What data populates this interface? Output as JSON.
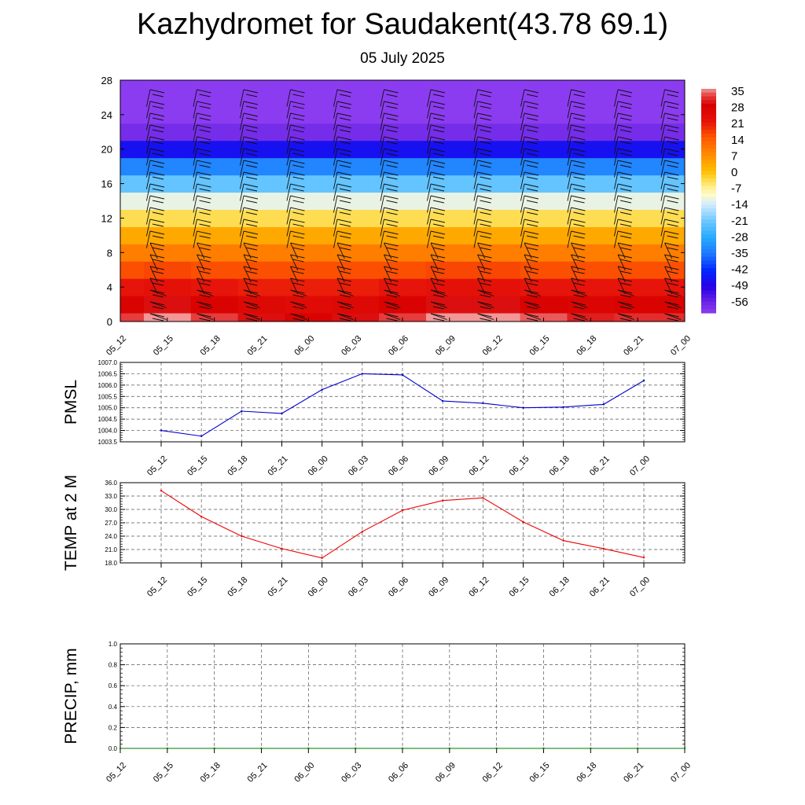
{
  "header": {
    "title": "Kazhydromet for Saudakent(43.78 69.1)",
    "date": "05 July 2025"
  },
  "chart_data": [
    {
      "type": "heatmap",
      "title": "",
      "ylim": [
        0,
        28
      ],
      "yticks": [
        "0",
        "4",
        "8",
        "12",
        "16",
        "20",
        "24",
        "28"
      ],
      "categories": [
        "05_12",
        "05_15",
        "05_18",
        "05_21",
        "06_00",
        "06_03",
        "06_06",
        "06_09",
        "06_12",
        "06_15",
        "06_18",
        "06_21",
        "07_00"
      ],
      "levels": [
        0,
        2,
        4,
        6,
        8,
        10,
        12,
        14,
        16,
        18,
        20,
        22,
        24,
        26,
        28
      ],
      "values": [
        [
          32,
          35,
          32,
          29,
          27,
          29,
          32,
          35,
          35,
          33,
          30,
          31,
          31
        ],
        [
          27,
          29,
          27,
          25,
          24,
          25,
          27,
          29,
          29,
          27,
          26,
          27,
          27
        ],
        [
          21,
          22,
          21,
          20,
          20,
          20,
          21,
          22,
          22,
          21,
          21,
          21,
          21
        ],
        [
          15,
          16,
          15,
          15,
          15,
          15,
          15,
          16,
          16,
          15,
          15,
          15,
          15
        ],
        [
          9,
          9,
          9,
          9,
          9,
          9,
          9,
          9,
          9,
          9,
          9,
          9,
          9
        ],
        [
          3,
          3,
          3,
          3,
          3,
          3,
          3,
          3,
          3,
          3,
          3,
          3,
          3
        ],
        [
          -4,
          -4,
          -4,
          -4,
          -4,
          -4,
          -4,
          -4,
          -4,
          -4,
          -4,
          -4,
          -4
        ],
        [
          -12,
          -12,
          -12,
          -12,
          -12,
          -12,
          -12,
          -12,
          -12,
          -12,
          -12,
          -12,
          -12
        ],
        [
          -22,
          -22,
          -22,
          -22,
          -22,
          -22,
          -22,
          -22,
          -22,
          -22,
          -22,
          -22,
          -22
        ],
        [
          -33,
          -33,
          -33,
          -33,
          -33,
          -33,
          -33,
          -33,
          -33,
          -33,
          -33,
          -33,
          -33
        ],
        [
          -46,
          -46,
          -46,
          -46,
          -46,
          -46,
          -46,
          -46,
          -46,
          -46,
          -46,
          -46,
          -46
        ],
        [
          -57,
          -57,
          -57,
          -57,
          -57,
          -57,
          -57,
          -57,
          -57,
          -57,
          -57,
          -57,
          -57
        ],
        [
          -60,
          -60,
          -60,
          -60,
          -60,
          -60,
          -60,
          -60,
          -60,
          -60,
          -60,
          -60,
          -60
        ],
        [
          -60,
          -60,
          -60,
          -60,
          -60,
          -60,
          -60,
          -60,
          -60,
          -60,
          -60,
          -60,
          -60
        ],
        [
          -60,
          -60,
          -60,
          -60,
          -60,
          -60,
          -60,
          -60,
          -60,
          -60,
          -60,
          -60,
          -60
        ]
      ],
      "colorbar": {
        "labels": [
          "35",
          "28",
          "21",
          "14",
          "7",
          "0",
          "-7",
          "-14",
          "-21",
          "-28",
          "-35",
          "-42",
          "-49",
          "-56"
        ],
        "colors": [
          "#f2aaaa",
          "#e81e1e",
          "#dd0000",
          "#ff6600",
          "#ff9900",
          "#ffcc33",
          "#fff2a0",
          "#c8e6ff",
          "#5ab4ff",
          "#1e78ff",
          "#0028ff",
          "#2800e6",
          "#5a1edc",
          "#8c3cf0"
        ]
      },
      "wind_barbs": true
    },
    {
      "type": "line",
      "ylabel": "PMSL",
      "ylim": [
        1003.5,
        1007.0
      ],
      "yticks": [
        "1003.5",
        "1004.0",
        "1004.5",
        "1005.0",
        "1005.5",
        "1006.0",
        "1006.5",
        "1007.0"
      ],
      "categories": [
        "05_12",
        "05_15",
        "05_18",
        "05_21",
        "06_00",
        "06_03",
        "06_06",
        "06_09",
        "06_12",
        "06_15",
        "06_18",
        "06_21",
        "07_00"
      ],
      "series": [
        {
          "values": [
            1004.0,
            1003.75,
            1004.85,
            1004.75,
            1005.8,
            1006.5,
            1006.45,
            1005.3,
            1005.2,
            1005.0,
            1005.03,
            1005.15,
            1006.2
          ],
          "color": "#0000cc"
        }
      ],
      "grid": true
    },
    {
      "type": "line",
      "ylabel": "TEMP at 2 M",
      "ylim": [
        18.0,
        36.0
      ],
      "yticks": [
        "18.0",
        "21.0",
        "24.0",
        "27.0",
        "30.0",
        "33.0",
        "36.0"
      ],
      "categories": [
        "05_12",
        "05_15",
        "05_18",
        "05_21",
        "06_00",
        "06_03",
        "06_06",
        "06_09",
        "06_12",
        "06_15",
        "06_18",
        "06_21",
        "07_00"
      ],
      "series": [
        {
          "values": [
            34.2,
            28.4,
            24.0,
            21.2,
            19.1,
            25.0,
            29.8,
            32.0,
            32.6,
            27.2,
            23.0,
            21.2,
            19.2
          ],
          "color": "#ee0000"
        }
      ],
      "grid": true
    },
    {
      "type": "line",
      "ylabel": "PRECIP, mm",
      "ylim": [
        0.0,
        1.0
      ],
      "yticks": [
        "0.0",
        "0.2",
        "0.4",
        "0.6",
        "0.8",
        "1.0"
      ],
      "categories": [
        "05_12",
        "05_15",
        "05_18",
        "05_21",
        "06_00",
        "06_03",
        "06_06",
        "06_09",
        "06_12",
        "06_15",
        "06_18",
        "06_21",
        "07_00"
      ],
      "series": [
        {
          "values": [
            0,
            0,
            0,
            0,
            0,
            0,
            0,
            0,
            0,
            0,
            0,
            0,
            0
          ],
          "color": "#007700"
        }
      ],
      "grid": true
    }
  ]
}
